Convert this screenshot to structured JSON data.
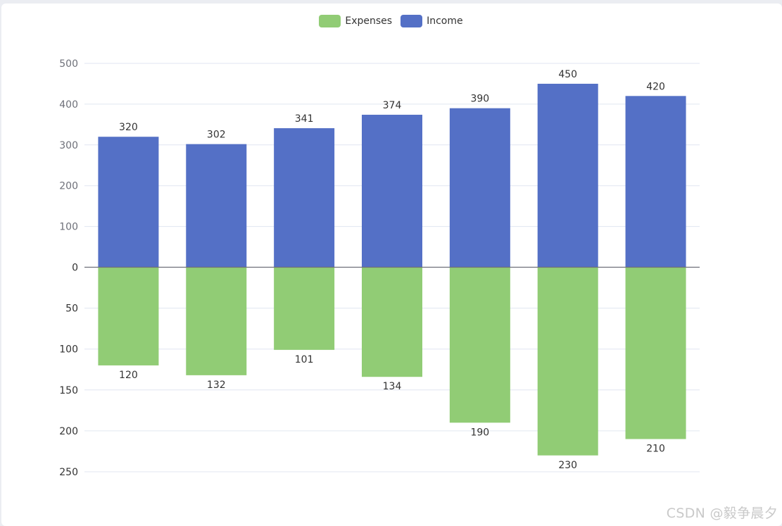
{
  "legend": {
    "items": [
      {
        "label": "Expenses",
        "color": "#91cc75"
      },
      {
        "label": "Income",
        "color": "#5470c6"
      }
    ]
  },
  "watermark": "CSDN @毅争晨夕",
  "chart_data": {
    "type": "bar",
    "title": "",
    "xlabel": "",
    "ylabel": "",
    "categories": [
      "",
      "",
      "",
      "",
      "",
      "",
      ""
    ],
    "series": [
      {
        "name": "Income",
        "color": "#5470c6",
        "values": [
          320,
          302,
          341,
          374,
          390,
          450,
          420
        ],
        "direction": "up"
      },
      {
        "name": "Expenses",
        "color": "#91cc75",
        "values": [
          120,
          132,
          101,
          134,
          190,
          230,
          210
        ],
        "direction": "down"
      }
    ],
    "upper_ticks": [
      "500",
      "400",
      "300",
      "200",
      "100"
    ],
    "zero_tick": "0",
    "lower_ticks": [
      "50",
      "100",
      "150",
      "200",
      "250"
    ],
    "upper_range": [
      0,
      500
    ],
    "lower_range": [
      0,
      250
    ],
    "grid": true,
    "legend_position": "top-center"
  }
}
